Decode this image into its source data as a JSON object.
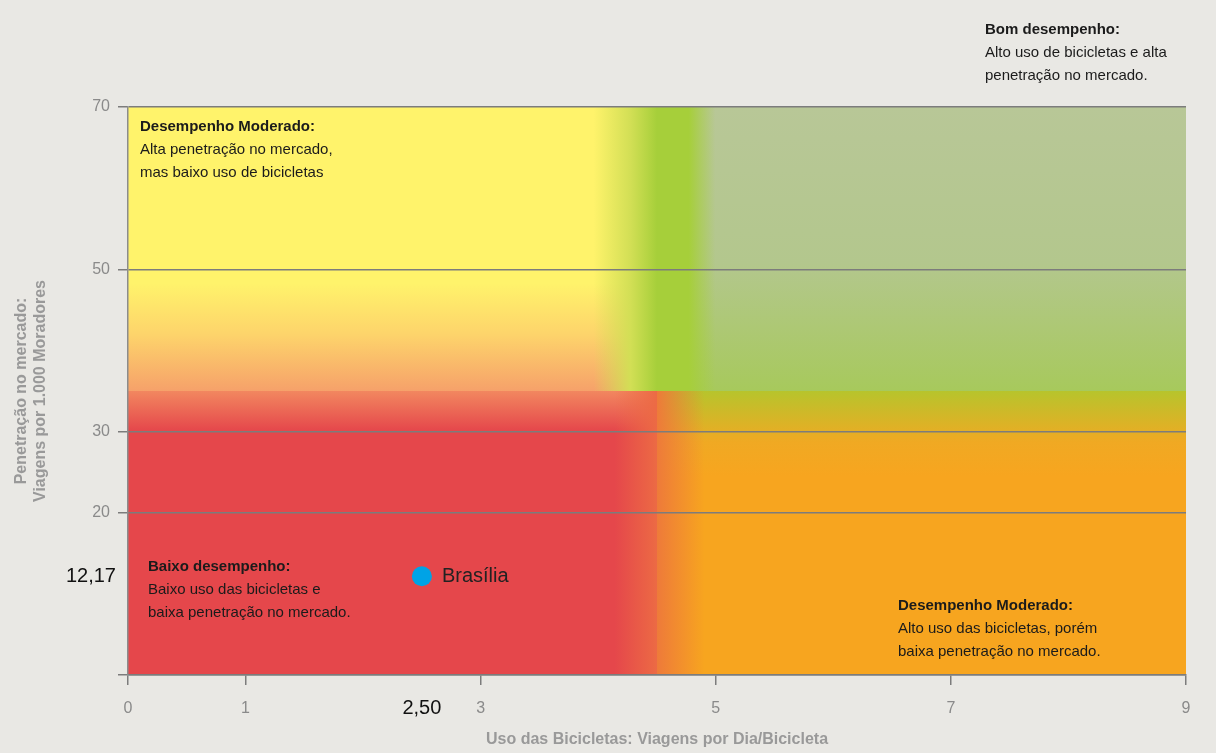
{
  "chart_data": {
    "type": "scatter",
    "xlabel": "Uso das Bicicletas: Viagens por Dia/Bicicleta",
    "ylabel": "Penetração no mercado:\nViagens por 1.000 Moradores",
    "x": [
      2.5
    ],
    "series": [
      {
        "name": "Brasília",
        "color": "#00a3e6",
        "values": [
          12.17
        ]
      }
    ],
    "xlim": [
      0,
      9
    ],
    "xticks": [
      0,
      1,
      3,
      5,
      7,
      9
    ],
    "ylim": [
      0,
      70
    ],
    "yticks": [
      {
        "value": 0,
        "label": null
      },
      20,
      30,
      50,
      70
    ],
    "grid": "y",
    "marker": "circle",
    "annotations": [
      "Bom desempenho:\nAlto uso de bicicletas e alta\npenetração no mercado.",
      "Desempenho Moderado:\nAlta penetração no mercado,\nmas baixo uso de bicicletas",
      "Baixo desempenho:\nBaixo uso das bicicletas e\nbaixa penetração no mercado.",
      "Desempenho Moderado:\nAlto uso das bicicletas, porém\nbaixa penetração no mercado.",
      "12,17",
      "2,50"
    ]
  }
}
